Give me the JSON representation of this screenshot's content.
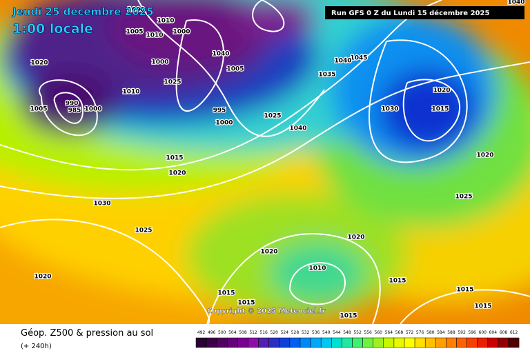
{
  "header": {
    "date": "Jeudi 25 decembre 2025",
    "time": "1:00 locale",
    "run": "Run GFS 0 Z du Lundi 15 décembre 2025"
  },
  "copyright": "Copyright © 2025 Meteociel.fr",
  "footer": {
    "title": "Géop. Z500 & pression au sol",
    "subtitle": "(+ 240h)"
  },
  "legend": {
    "values": [
      492,
      496,
      500,
      504,
      508,
      512,
      516,
      520,
      524,
      528,
      532,
      536,
      540,
      544,
      548,
      552,
      556,
      560,
      564,
      568,
      572,
      576,
      580,
      584,
      588,
      592,
      596,
      600,
      604,
      608,
      612
    ]
  },
  "isobar_labels": [
    "1000",
    "1010",
    "1005",
    "1000",
    "1010",
    "1000",
    "1020",
    "1010",
    "1025",
    "1040",
    "1005",
    "1005",
    "985",
    "1000",
    "990",
    "995",
    "1000",
    "1025",
    "1040",
    "1045",
    "1035",
    "1040",
    "1020",
    "1015",
    "1030",
    "1015",
    "1020",
    "1020",
    "1030",
    "1025",
    "1025",
    "1020",
    "1020",
    "1010",
    "1020",
    "1015",
    "1015",
    "1015",
    "1015",
    "1015",
    "1015",
    "1040"
  ]
}
